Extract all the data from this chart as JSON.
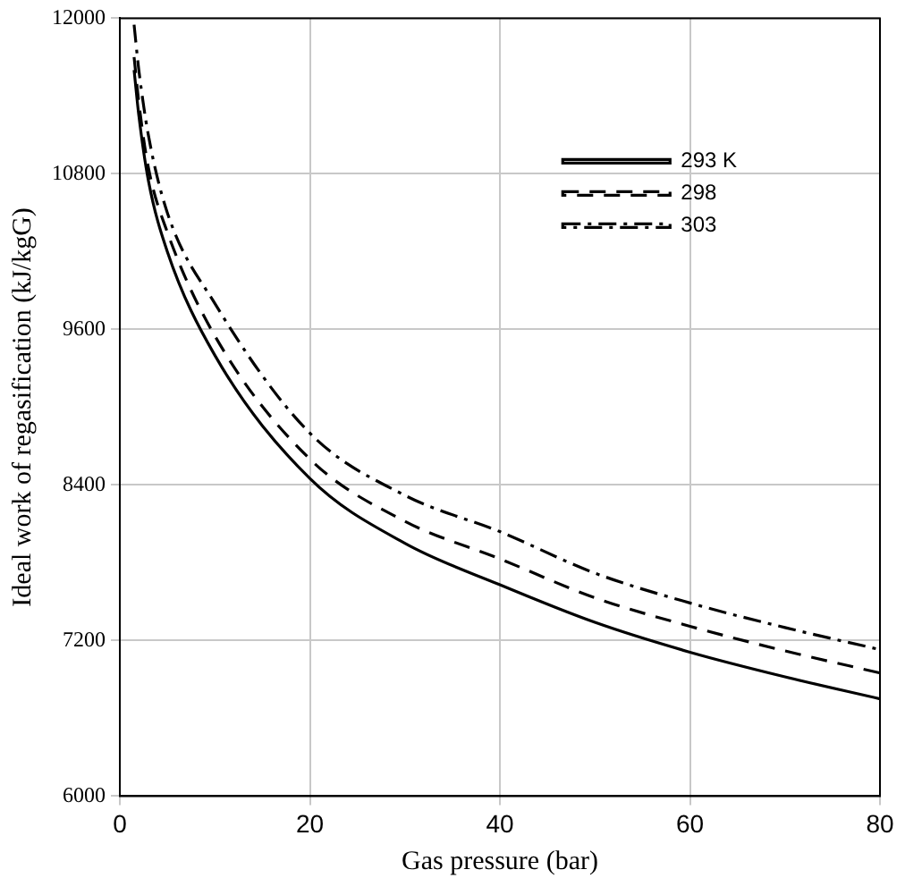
{
  "chart_data": {
    "type": "line",
    "xlabel": "Gas pressure (bar)",
    "ylabel": "Ideal work of regasification (kJ/kgG)",
    "xlim": [
      0,
      80
    ],
    "xticks": [
      0,
      20,
      40,
      60,
      80
    ],
    "ylim": [
      6000,
      12000
    ],
    "yticks": [
      6000,
      7200,
      8400,
      9600,
      10800,
      12000
    ],
    "grid": true,
    "legend": "top right",
    "marker": "none",
    "series": [
      {
        "name": "293 K",
        "color": "#000000",
        "line_style": "solid",
        "x": [
          1.5,
          2,
          3,
          5,
          10,
          20,
          30,
          40,
          50,
          60,
          70,
          80
        ],
        "values": [
          11600,
          11250,
          10750,
          10200,
          9400,
          8450,
          7950,
          7630,
          7340,
          7110,
          6920,
          6750
        ]
      },
      {
        "name": "298",
        "color": "#000000",
        "line_style": "dashed",
        "x": [
          1.5,
          2,
          3,
          5,
          10,
          20,
          30,
          40,
          50,
          60,
          70,
          80
        ],
        "values": [
          11700,
          11350,
          10850,
          10350,
          9550,
          8600,
          8120,
          7830,
          7530,
          7310,
          7120,
          6950
        ]
      },
      {
        "name": "303",
        "color": "#000000",
        "line_style": "dashdot",
        "x": [
          1.5,
          2,
          3,
          5,
          10,
          20,
          30,
          40,
          50,
          60,
          70,
          80
        ],
        "values": [
          11950,
          11600,
          11100,
          10500,
          9800,
          8800,
          8320,
          8040,
          7720,
          7490,
          7300,
          7130
        ]
      }
    ]
  }
}
